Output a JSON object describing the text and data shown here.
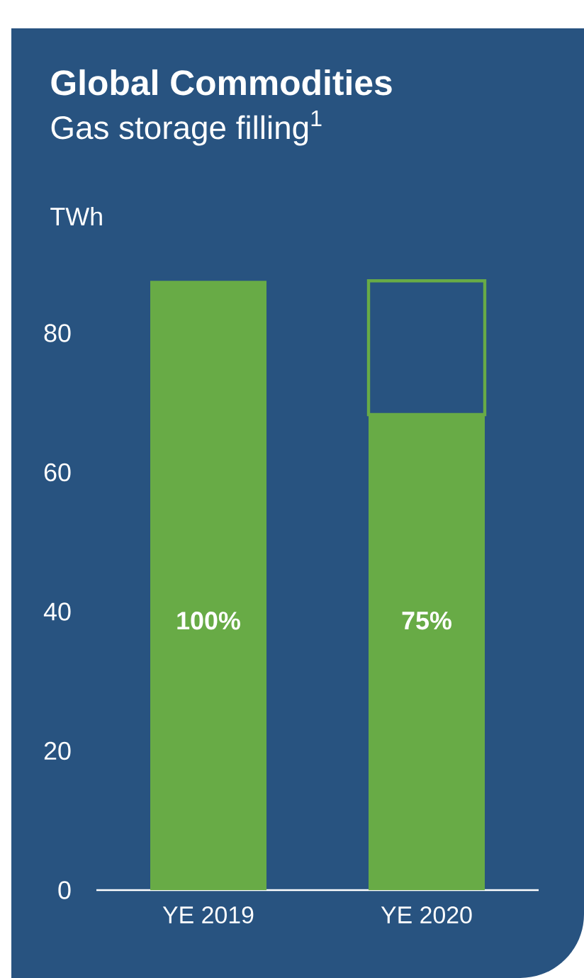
{
  "chart_data": {
    "type": "bar",
    "title": "Global Commodities",
    "subtitle": "Gas storage filling$^{1}$",
    "ylabel": "TWh",
    "categories": [
      "YE 2019",
      "YE 2020"
    ],
    "stacked": true,
    "series": [
      {
        "color": "#68ab46",
        "values": [
          87.5,
          68.3
        ]
      },
      {
        "color": "#68ab46",
        "values": [
          null,
          19.2
        ]
      }
    ],
    "annotations": [
      "100%",
      "75%"
    ],
    "ylim": [
      0,
      87.5
    ],
    "yticks": [
      0,
      20,
      40,
      60,
      80
    ],
    "grid": false
  }
}
